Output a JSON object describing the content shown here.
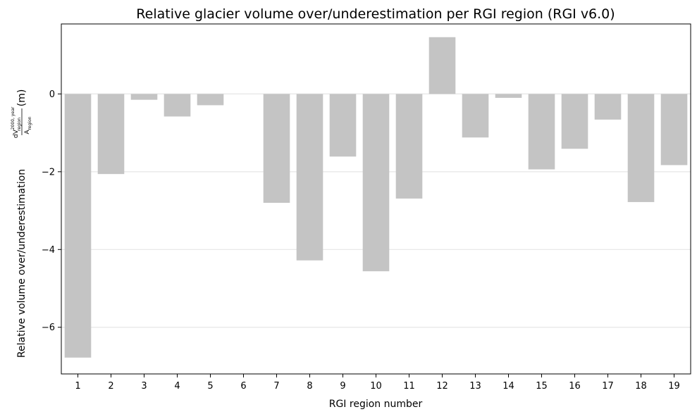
{
  "chart_data": {
    "type": "bar",
    "title": "Relative glacier volume over/underestimation per RGI region (RGI v6.0)",
    "xlabel": "RGI region number",
    "ylabel": "Relative volume over/underestimation",
    "ylabel_unit": "(m)",
    "ylabel_formula": {
      "numerator_base": "dV",
      "numerator_sup": "2000, year",
      "numerator_sub": "region",
      "denominator_base": "A",
      "denominator_sub": "region"
    },
    "categories": [
      "1",
      "2",
      "3",
      "4",
      "5",
      "6",
      "7",
      "8",
      "9",
      "10",
      "11",
      "12",
      "13",
      "14",
      "15",
      "16",
      "17",
      "18",
      "19"
    ],
    "values": [
      -6.78,
      -2.06,
      -0.15,
      -0.58,
      -0.29,
      0.0,
      -2.8,
      -4.28,
      -1.61,
      -4.56,
      -2.69,
      1.46,
      -1.12,
      -0.1,
      -1.94,
      -1.41,
      -0.66,
      -2.78,
      -1.83
    ],
    "ylim": [
      -7.2,
      1.8
    ],
    "yticks": [
      0,
      -2,
      -4,
      -6
    ],
    "ytick_labels": [
      "0",
      "−2",
      "−4",
      "−6"
    ],
    "grid": "horizontal",
    "bar_color": "#c4c4c4"
  }
}
